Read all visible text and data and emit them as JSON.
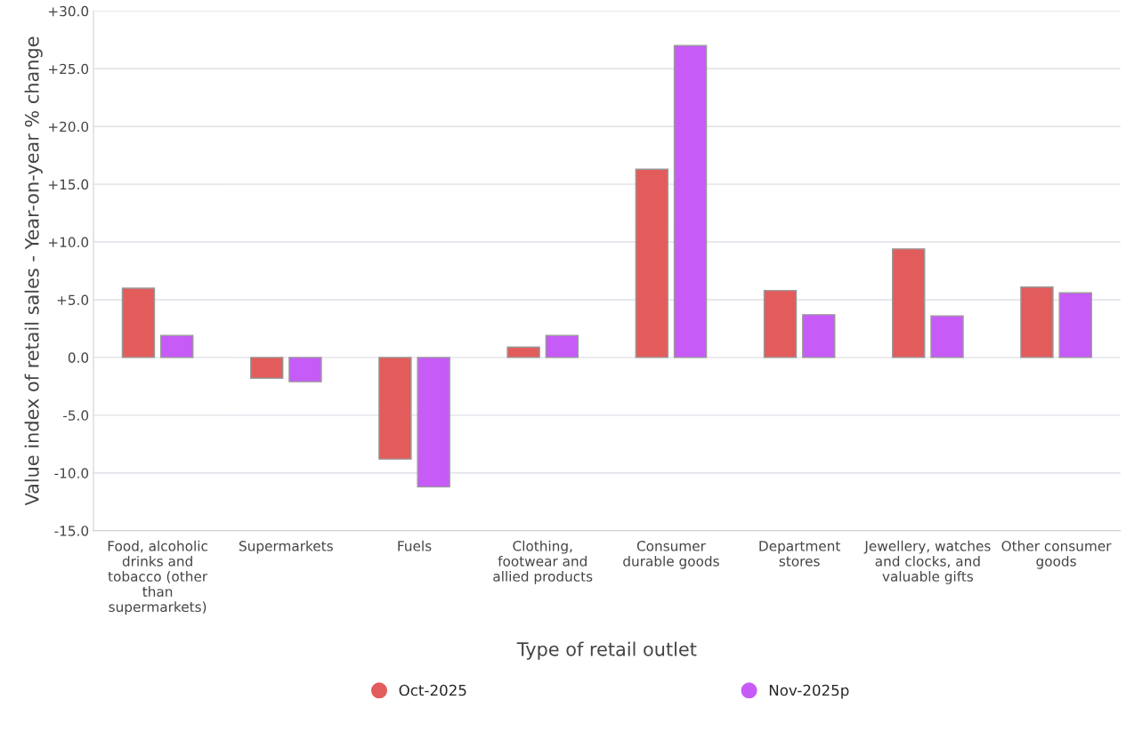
{
  "chart_data": {
    "type": "bar",
    "xlabel": "Type of retail outlet",
    "ylabel": "Value index of retail sales - Year-on-year % change",
    "categories": [
      "Food, alcoholic\ndrinks and\ntobacco (other\nthan\nsupermarkets)",
      "Supermarkets",
      "Fuels",
      "Clothing,\nfootwear and\nallied products",
      "Consumer\ndurable goods",
      "Department\nstores",
      "Jewellery, watches\nand clocks, and\nvaluable gifts",
      "Other consumer\ngoods"
    ],
    "series": [
      {
        "name": "Oct-2025",
        "color": "#e35c5c",
        "values": [
          6.0,
          -1.8,
          -8.8,
          0.9,
          16.3,
          5.8,
          9.4,
          6.1
        ]
      },
      {
        "name": "Nov-2025p",
        "color": "#c75bf7",
        "values": [
          1.9,
          -2.1,
          -11.2,
          1.9,
          27.0,
          3.7,
          3.6,
          5.6
        ]
      }
    ],
    "ylim": [
      -15,
      30
    ],
    "yticks": [
      {
        "value": -15,
        "label": "-15.0"
      },
      {
        "value": -10,
        "label": "-10.0"
      },
      {
        "value": -5,
        "label": "-5.0"
      },
      {
        "value": 0,
        "label": "0.0"
      },
      {
        "value": 5,
        "label": "+5.0"
      },
      {
        "value": 10,
        "label": "+10.0"
      },
      {
        "value": 15,
        "label": "+15.0"
      },
      {
        "value": 20,
        "label": "+20.0"
      },
      {
        "value": 25,
        "label": "+25.0"
      },
      {
        "value": 30,
        "label": "+30.0"
      }
    ],
    "grid": "y",
    "legend": "bottom"
  }
}
